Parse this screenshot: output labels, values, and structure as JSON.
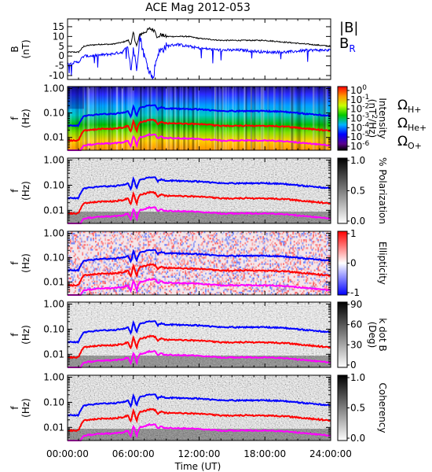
{
  "figure": {
    "title": "ACE Mag 2012-053",
    "xlabel": "Time (UT)",
    "xticks": [
      "00:00:00",
      "06:00:00",
      "12:00:00",
      "18:00:00",
      "24:00:00"
    ],
    "xtick_hours": [
      0,
      6,
      12,
      18,
      24
    ]
  },
  "chart_data": [
    {
      "type": "line",
      "panel": "magnetic-field",
      "ylabel": "B",
      "yunit": "(nT)",
      "ylim": [
        -12,
        19
      ],
      "yticks": [
        "-10",
        "-5",
        "0",
        "5",
        "10",
        "15"
      ],
      "ytick_values": [
        -10,
        -5,
        0,
        5,
        10,
        15
      ],
      "series": [
        {
          "name": "|B|",
          "color": "#000000",
          "x": [
            0,
            1,
            1.5,
            2,
            3,
            4,
            5,
            5.5,
            5.8,
            6,
            6.3,
            6.6,
            7,
            7.5,
            8,
            8.2,
            8.5,
            9,
            10,
            11,
            12,
            14,
            16,
            18,
            20,
            22,
            24
          ],
          "y": [
            2,
            2,
            5,
            5.5,
            6,
            6,
            7,
            8,
            6,
            12,
            5,
            11,
            12,
            14,
            13,
            9,
            11,
            10,
            10,
            10,
            9,
            8,
            8,
            8,
            7,
            6,
            5
          ]
        },
        {
          "name": "B",
          "subscript": "R",
          "color": "#0000ff",
          "x": [
            0,
            1,
            1.5,
            2,
            3,
            4,
            5,
            5.5,
            5.8,
            6,
            6.3,
            6.6,
            7,
            7.5,
            7.8,
            8,
            8.3,
            8.6,
            9,
            10,
            11,
            12,
            14,
            16,
            18,
            20,
            22,
            24
          ],
          "y": [
            -4,
            -3,
            0,
            0,
            0.5,
            1,
            2,
            5,
            -7,
            4,
            -6,
            10,
            0,
            -8,
            -12,
            -4,
            2,
            3,
            5,
            6,
            5,
            4,
            3,
            3,
            2,
            2,
            3,
            3
          ]
        }
      ]
    },
    {
      "type": "heatmap",
      "panel": "intensity",
      "ylabel": "f",
      "yunit": "(Hz)",
      "ylim": [
        0.003,
        1.2
      ],
      "yscale": "log",
      "yticks": [
        "1.00",
        "0.10",
        "0.01"
      ],
      "ytick_values": [
        1,
        0.1,
        0.01
      ],
      "colorbar": {
        "label": "Intensity",
        "unit_parts": [
          "(nT",
          "2",
          "/Hz)"
        ],
        "ticks": [
          {
            "base": "10",
            "exp": "0"
          },
          {
            "base": "10",
            "exp": "-1"
          },
          {
            "base": "10",
            "exp": "-2"
          },
          {
            "base": "10",
            "exp": "-3"
          },
          {
            "base": "10",
            "exp": "-4"
          },
          {
            "base": "10",
            "exp": "-5"
          },
          {
            "base": "10",
            "exp": "-6"
          }
        ],
        "tick_values": [
          1,
          0.1,
          0.01,
          0.001,
          0.0001,
          1e-05,
          1e-06
        ],
        "colormap": "rainbow"
      },
      "legend": [
        {
          "symbol": "Ω",
          "sub": "H+",
          "color": "#0000ff"
        },
        {
          "symbol": "Ω",
          "sub": "He+",
          "color": "#ff0000"
        },
        {
          "symbol": "Ω",
          "sub": "O+",
          "color": "#ff00ff"
        }
      ]
    },
    {
      "type": "heatmap",
      "panel": "polarization",
      "ylabel": "f",
      "yunit": "(Hz)",
      "yscale": "log",
      "yticks": [
        "1.00",
        "0.10",
        "0.01"
      ],
      "ytick_values": [
        1,
        0.1,
        0.01
      ],
      "colorbar": {
        "label": "% Polarization",
        "ticks": [
          "1.0",
          "0.5",
          "0.0"
        ],
        "tick_values": [
          1,
          0.5,
          0
        ],
        "colormap": "grayscale"
      }
    },
    {
      "type": "heatmap",
      "panel": "ellipticity",
      "ylabel": "f",
      "yunit": "(Hz)",
      "yscale": "log",
      "yticks": [
        "1.00",
        "0.10",
        "0.01"
      ],
      "ytick_values": [
        1,
        0.1,
        0.01
      ],
      "colorbar": {
        "label": "Ellipticity",
        "ticks": [
          "1",
          "0",
          "-1"
        ],
        "tick_values": [
          1,
          0,
          -1
        ],
        "colormap": "blue-white-red"
      }
    },
    {
      "type": "heatmap",
      "panel": "k-dot-b",
      "ylabel": "f",
      "yunit": "(Hz)",
      "yscale": "log",
      "yticks": [
        "1.00",
        "0.10",
        "0.01"
      ],
      "ytick_values": [
        1,
        0.1,
        0.01
      ],
      "colorbar": {
        "label": "k dot B",
        "unit": "(Deg)",
        "ticks": [
          "90",
          "60",
          "30",
          "0"
        ],
        "tick_values": [
          90,
          60,
          30,
          0
        ],
        "colormap": "grayscale"
      }
    },
    {
      "type": "heatmap",
      "panel": "coherency",
      "ylabel": "f",
      "yunit": "(Hz)",
      "yscale": "log",
      "yticks": [
        "1.00",
        "0.10",
        "0.01"
      ],
      "ytick_values": [
        1,
        0.1,
        0.01
      ],
      "colorbar": {
        "label": "Coherency",
        "ticks": [
          "1.0",
          "0.5",
          "0.0"
        ],
        "tick_values": [
          1,
          0.5,
          0
        ],
        "colormap": "grayscale"
      }
    }
  ],
  "gyrofrequency": {
    "x": [
      0,
      1,
      1.5,
      2,
      3,
      4,
      5,
      5.5,
      5.8,
      6,
      6.3,
      6.6,
      7,
      7.5,
      8,
      8.2,
      8.5,
      9,
      10,
      12,
      14,
      16,
      18,
      20,
      22,
      24
    ],
    "h_plus_hz": [
      0.03,
      0.03,
      0.075,
      0.08,
      0.09,
      0.09,
      0.1,
      0.12,
      0.06,
      0.18,
      0.07,
      0.17,
      0.18,
      0.21,
      0.2,
      0.14,
      0.17,
      0.15,
      0.15,
      0.14,
      0.12,
      0.12,
      0.12,
      0.11,
      0.09,
      0.075
    ],
    "colors": {
      "h_plus": "#0000ff",
      "he_plus": "#ff0000",
      "o_plus": "#ff00ff"
    }
  }
}
